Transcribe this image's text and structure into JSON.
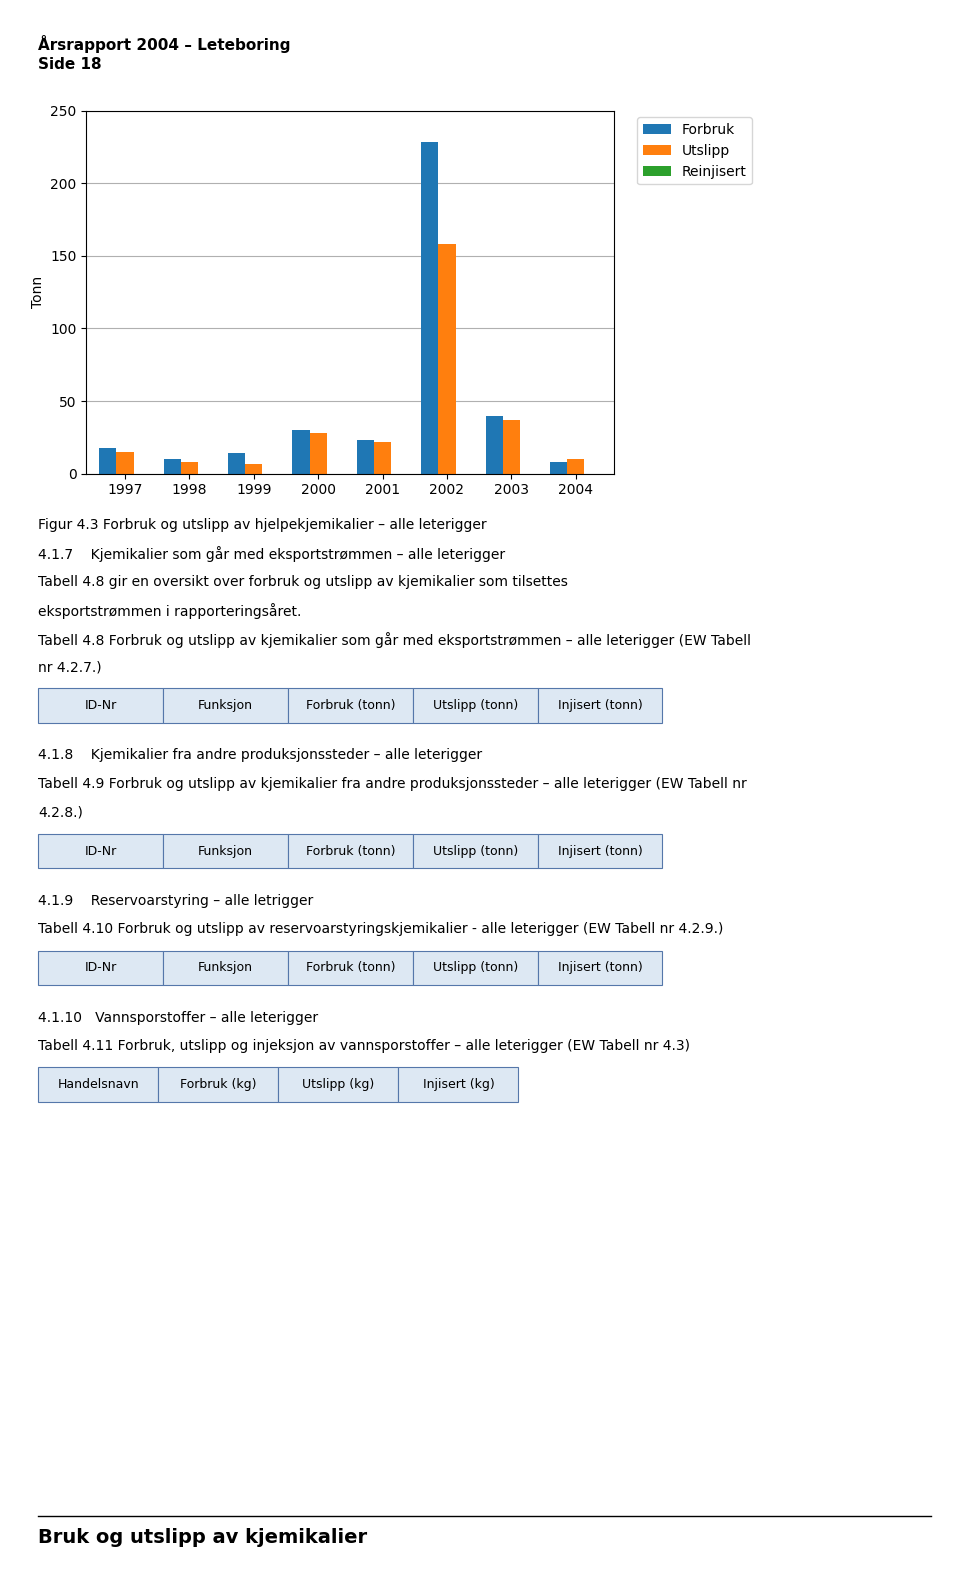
{
  "chart_data": {
    "type": "bar",
    "title": "Årsrapport 2004 – Leteboring",
    "subtitle": "Side 18",
    "y_label": "Tonn",
    "categories": [
      "1997",
      "1998",
      "1999",
      "2000",
      "2001",
      "2002",
      "2003",
      "2004"
    ],
    "series": [
      {
        "name": "Forbruk",
        "values": [
          18,
          10,
          14,
          30,
          23,
          228,
          40,
          8
        ]
      },
      {
        "name": "Utslipp",
        "values": [
          15,
          8,
          7,
          28,
          22,
          158,
          37,
          10
        ]
      },
      {
        "name": "Reinjisert",
        "values": [
          0,
          0,
          0,
          0,
          0,
          0,
          0,
          0
        ]
      }
    ],
    "ylim": [
      0,
      250
    ],
    "yticks": [
      0,
      50,
      100,
      150,
      200,
      250
    ],
    "grid": true,
    "legend": "upper left",
    "annotations": [
      "Figur 4.3 Forbruk og utslipp av hjelpekjemikalier – alle leterigger",
      "4.1.7    Kjemikalier som går med eksportstrømmen – alle leterigger",
      "Tabell 4.8 gir en oversikt over forbruk og utslipp av kjemikalier som tilsettes",
      "eksportstrømmen i rapporteringsåret.",
      "Tabell 4.8 Forbruk og utslipp av kjemikalier som går med eksportstrømmen – alle leterigger (EW Tabell",
      "nr 4.2.7.)",
      [
        "ID-Nr",
        "Funksjon",
        "Forbruk (tonn)",
        "Utslipp (tonn)",
        "Injisert (tonn)"
      ],
      "4.1.8    Kjemikalier fra andre produksjonssteder – alle leterigger",
      "Tabell 4.9 Forbruk og utslipp av kjemikalier fra andre produksjonssteder – alle leterigger (EW Tabell nr",
      "4.2.8.)",
      [
        "ID-Nr",
        "Funksjon",
        "Forbruk (tonn)",
        "Utslipp (tonn)",
        "Injisert (tonn)"
      ],
      "4.1.9    Reservoarstyring – alle letrigger",
      "Tabell 4.10 Forbruk og utslipp av reservoarstyringskjemikalier - alle leterigger (EW Tabell nr 4.2.9.)",
      [
        "ID-Nr",
        "Funksjon",
        "Forbruk (tonn)",
        "Utslipp (tonn)",
        "Injisert (tonn)"
      ],
      "4.1.10   Vannsporstoffer – alle leterigger",
      "Tabell 4.11 Forbruk, utslipp og injeksjon av vannsporstoffer – alle leterigger (EW Tabell nr 4.3)",
      [
        "Handelsnavn",
        "Forbruk (kg)",
        "Utslipp (kg)",
        "Injisert (kg)"
      ]
    ],
    "footer": "Bruk og utslipp av kjemikalier"
  }
}
